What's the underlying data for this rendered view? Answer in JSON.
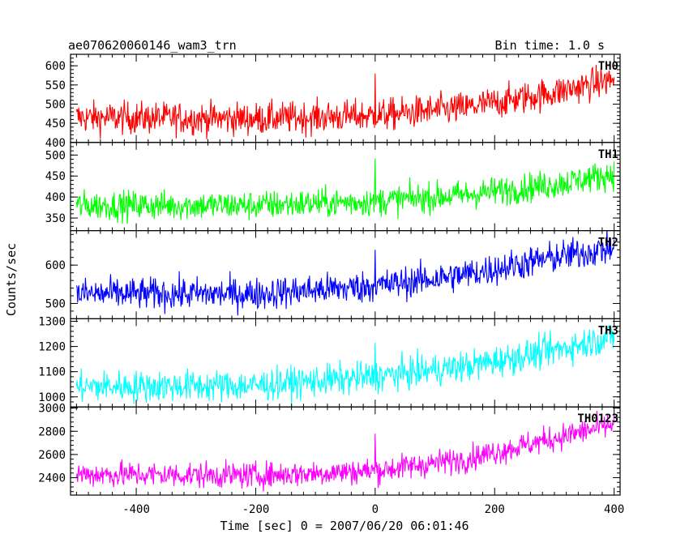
{
  "chart_data": {
    "type": "line",
    "title": "ae070620060146_wam3_trn",
    "bin_time": "Bin time: 1.0 s",
    "xlabel": "Time [sec] 0 = 2007/06/20 06:01:46",
    "ylabel": "Counts/sec",
    "xlim": [
      -510,
      410
    ],
    "xticks": [
      -400,
      -200,
      0,
      200,
      400
    ],
    "grid": false,
    "panels": [
      {
        "name": "TH0",
        "color": "#ff0000",
        "ylim": [
          400,
          630
        ],
        "yticks": [
          400,
          450,
          500,
          550,
          600
        ],
        "trend_x": [
          -500,
          -200,
          0,
          150,
          300,
          400
        ],
        "trend_y": [
          465,
          462,
          470,
          490,
          530,
          565
        ],
        "noise": 30,
        "spike_x": 0,
        "spike_y": 580
      },
      {
        "name": "TH1",
        "color": "#00ff00",
        "ylim": [
          320,
          530
        ],
        "yticks": [
          350,
          400,
          450,
          500
        ],
        "trend_x": [
          -500,
          -200,
          0,
          150,
          300,
          400
        ],
        "trend_y": [
          380,
          380,
          390,
          405,
          430,
          455
        ],
        "noise": 25,
        "spike_x": 0,
        "spike_y": 492
      },
      {
        "name": "TH2",
        "color": "#0000ff",
        "ylim": [
          460,
          690
        ],
        "yticks": [
          500,
          600
        ],
        "trend_x": [
          -500,
          -200,
          0,
          150,
          300,
          400
        ],
        "trend_y": [
          525,
          525,
          545,
          575,
          620,
          645
        ],
        "noise": 30,
        "spike_x": 0,
        "spike_y": 640
      },
      {
        "name": "TH3",
        "color": "#00ffff",
        "ylim": [
          960,
          1310
        ],
        "yticks": [
          1000,
          1100,
          1200,
          1300
        ],
        "trend_x": [
          -500,
          -200,
          0,
          150,
          300,
          400
        ],
        "trend_y": [
          1040,
          1045,
          1080,
          1120,
          1185,
          1240
        ],
        "noise": 45,
        "spike_x": 0,
        "spike_y": 1215
      },
      {
        "name": "TH0123",
        "color": "#ff00ff",
        "ylim": [
          2250,
          3010
        ],
        "yticks": [
          2400,
          2600,
          2800,
          3000
        ],
        "trend_x": [
          -500,
          -200,
          0,
          150,
          300,
          400
        ],
        "trend_y": [
          2430,
          2420,
          2460,
          2560,
          2740,
          2860
        ],
        "noise": 80,
        "spike_x": 0,
        "spike_y": 2780
      }
    ]
  }
}
